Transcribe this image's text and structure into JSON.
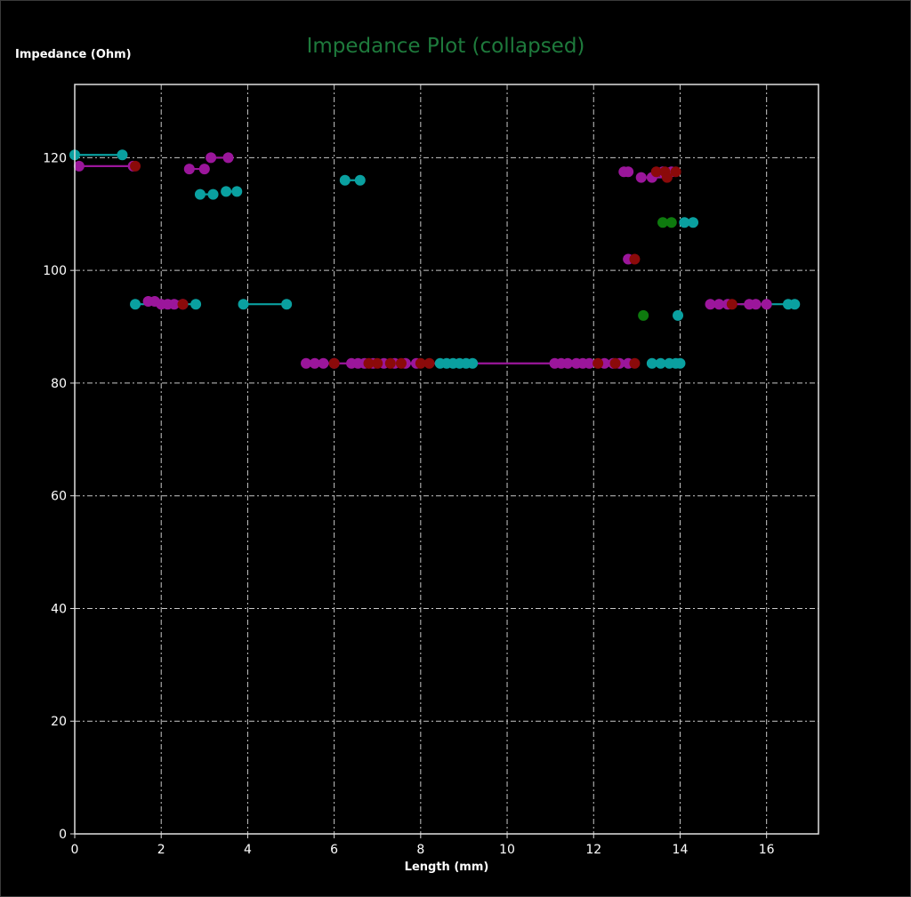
{
  "chart_data": {
    "type": "scatter",
    "title": "Impedance Plot (collapsed)",
    "xlabel": "Length (mm)",
    "ylabel": "Impedance (Ohm)",
    "xlim": [
      0,
      17.2
    ],
    "ylim": [
      0,
      133
    ],
    "x_ticks": [
      0,
      2,
      4,
      6,
      8,
      10,
      12,
      14,
      16
    ],
    "y_ticks": [
      0,
      20,
      40,
      60,
      80,
      100,
      120
    ],
    "grid": true,
    "colors": {
      "title": "#1e7a3c",
      "teal": "#0aa0a0",
      "purple": "#9b169b",
      "darkred": "#8b0a0a",
      "green": "#0e7a0e"
    },
    "series": [
      {
        "color": "teal",
        "segments": [
          [
            [
              0,
              120.5
            ],
            [
              1.1,
              120.5
            ]
          ],
          [
            [
              1.4,
              94
            ],
            [
              2.8,
              94
            ]
          ],
          [
            [
              2.9,
              113.5
            ],
            [
              3.2,
              113.5
            ]
          ],
          [
            [
              3.5,
              114
            ],
            [
              3.75,
              114
            ]
          ],
          [
            [
              3.9,
              94
            ],
            [
              4.9,
              94
            ]
          ],
          [
            [
              6.25,
              116
            ],
            [
              6.6,
              116
            ]
          ],
          [
            [
              8.4,
              83.5
            ],
            [
              9.2,
              83.5
            ]
          ],
          [
            [
              13.4,
              83.5
            ],
            [
              14.0,
              83.5
            ]
          ],
          [
            [
              14.05,
              108.5
            ],
            [
              14.3,
              108.5
            ]
          ],
          [
            [
              15.4,
              94
            ],
            [
              16.7,
              94
            ]
          ]
        ],
        "points": [
          [
            0,
            120.5
          ],
          [
            1.1,
            120.5
          ],
          [
            1.4,
            94
          ],
          [
            2.8,
            94
          ],
          [
            2.9,
            113.5
          ],
          [
            3.2,
            113.5
          ],
          [
            3.5,
            114
          ],
          [
            3.75,
            114
          ],
          [
            3.9,
            94
          ],
          [
            4.9,
            94
          ],
          [
            6.25,
            116
          ],
          [
            6.6,
            116
          ],
          [
            8.45,
            83.5
          ],
          [
            8.6,
            83.5
          ],
          [
            8.75,
            83.5
          ],
          [
            8.9,
            83.5
          ],
          [
            9.05,
            83.5
          ],
          [
            9.2,
            83.5
          ],
          [
            13.35,
            83.5
          ],
          [
            13.55,
            83.5
          ],
          [
            13.75,
            83.5
          ],
          [
            13.9,
            83.5
          ],
          [
            14.0,
            83.5
          ],
          [
            13.95,
            92
          ],
          [
            14.1,
            108.5
          ],
          [
            14.3,
            108.5
          ],
          [
            16.5,
            94
          ],
          [
            16.65,
            94
          ]
        ]
      },
      {
        "color": "purple",
        "segments": [
          [
            [
              0.1,
              118.5
            ],
            [
              1.35,
              118.5
            ]
          ],
          [
            [
              1.7,
              94.5
            ],
            [
              2.5,
              94.5
            ]
          ],
          [
            [
              2.65,
              118
            ],
            [
              3.0,
              118
            ]
          ],
          [
            [
              3.15,
              120
            ],
            [
              3.55,
              120
            ]
          ],
          [
            [
              5.35,
              83.5
            ],
            [
              13.0,
              83.5
            ]
          ],
          [
            [
              12.7,
              117.5
            ],
            [
              12.8,
              117.5
            ]
          ],
          [
            [
              13.1,
              116.5
            ],
            [
              13.8,
              116.5
            ]
          ],
          [
            [
              14.7,
              94
            ],
            [
              16.0,
              94
            ]
          ]
        ],
        "points": [
          [
            0.1,
            118.5
          ],
          [
            1.35,
            118.5
          ],
          [
            1.7,
            94.5
          ],
          [
            1.85,
            94.5
          ],
          [
            2.0,
            94
          ],
          [
            2.15,
            94
          ],
          [
            2.3,
            94
          ],
          [
            2.5,
            94
          ],
          [
            2.65,
            118
          ],
          [
            3.0,
            118
          ],
          [
            3.15,
            120
          ],
          [
            3.55,
            120
          ],
          [
            5.35,
            83.5
          ],
          [
            5.55,
            83.5
          ],
          [
            5.75,
            83.5
          ],
          [
            6.0,
            83.5
          ],
          [
            6.4,
            83.5
          ],
          [
            6.55,
            83.5
          ],
          [
            6.7,
            83.5
          ],
          [
            6.9,
            83.5
          ],
          [
            7.15,
            83.5
          ],
          [
            7.4,
            83.5
          ],
          [
            7.65,
            83.5
          ],
          [
            7.9,
            83.5
          ],
          [
            11.1,
            83.5
          ],
          [
            11.25,
            83.5
          ],
          [
            11.4,
            83.5
          ],
          [
            11.6,
            83.5
          ],
          [
            11.75,
            83.5
          ],
          [
            11.9,
            83.5
          ],
          [
            12.25,
            83.5
          ],
          [
            12.45,
            83.5
          ],
          [
            12.6,
            83.5
          ],
          [
            12.8,
            83.5
          ],
          [
            12.7,
            117.5
          ],
          [
            12.8,
            117.5
          ],
          [
            12.8,
            102
          ],
          [
            13.1,
            116.5
          ],
          [
            13.35,
            116.5
          ],
          [
            13.6,
            117.5
          ],
          [
            13.8,
            117.5
          ],
          [
            14.7,
            94
          ],
          [
            14.9,
            94
          ],
          [
            15.1,
            94
          ],
          [
            15.6,
            94
          ],
          [
            15.75,
            94
          ],
          [
            16.0,
            94
          ]
        ]
      },
      {
        "color": "darkred",
        "segments": [],
        "points": [
          [
            1.4,
            118.5
          ],
          [
            2.5,
            94
          ],
          [
            6.0,
            83.5
          ],
          [
            6.8,
            83.5
          ],
          [
            7.0,
            83.5
          ],
          [
            7.3,
            83.5
          ],
          [
            7.55,
            83.5
          ],
          [
            8.0,
            83.5
          ],
          [
            8.2,
            83.5
          ],
          [
            12.1,
            83.5
          ],
          [
            12.5,
            83.5
          ],
          [
            12.95,
            83.5
          ],
          [
            12.95,
            102
          ],
          [
            13.45,
            117.5
          ],
          [
            13.65,
            117.5
          ],
          [
            13.9,
            117.5
          ],
          [
            13.7,
            116.5
          ],
          [
            15.2,
            94
          ]
        ]
      },
      {
        "color": "green",
        "segments": [],
        "points": [
          [
            13.15,
            92
          ],
          [
            13.6,
            108.5
          ],
          [
            13.8,
            108.5
          ]
        ]
      }
    ]
  }
}
